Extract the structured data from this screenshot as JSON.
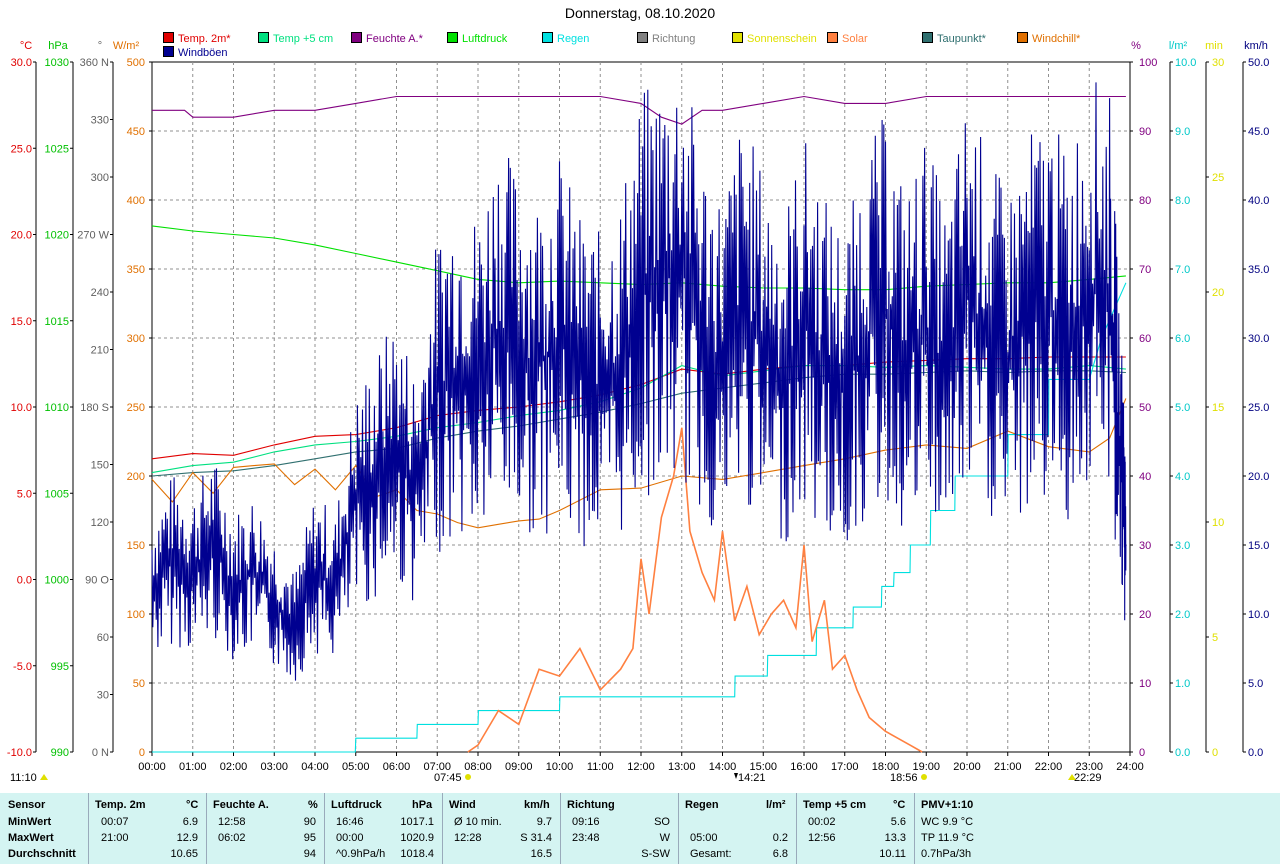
{
  "title": "Donnerstag, 08.10.2020",
  "legend": [
    {
      "label": "Temp. 2m*",
      "color": "#e00000"
    },
    {
      "label": "Temp +5 cm",
      "color": "#00e080"
    },
    {
      "label": "Feuchte A.*",
      "color": "#800080"
    },
    {
      "label": "Luftdruck",
      "color": "#00e000"
    },
    {
      "label": "Regen",
      "color": "#00e0e0"
    },
    {
      "label": "Richtung",
      "color": "#808080"
    },
    {
      "label": "Sonnenschein",
      "color": "#e0e000"
    },
    {
      "label": "Solar",
      "color": "#ff8040"
    },
    {
      "label": "Taupunkt*",
      "color": "#307070"
    },
    {
      "label": "Windchill*",
      "color": "#e07000"
    },
    {
      "label": "Windböen",
      "color": "#000090"
    }
  ],
  "left_axes": {
    "temp": {
      "unit": "°C",
      "color": "#e00000",
      "ticks": [
        "30.0",
        "25.0",
        "20.0",
        "15.0",
        "10.0",
        "5.0",
        "0.0",
        "-5.0",
        "-10.0"
      ]
    },
    "press": {
      "unit": "hPa",
      "color": "#00c000",
      "ticks": [
        "1030",
        "1025",
        "1020",
        "1015",
        "1010",
        "1005",
        "1000",
        "995",
        "990"
      ]
    },
    "dir": {
      "unit": "°",
      "color": "#606060",
      "ticks": [
        "360 N",
        "330",
        "300",
        "270 W",
        "240",
        "210",
        "180 S",
        "150",
        "120",
        "90 O",
        "60",
        "30",
        "0 N"
      ]
    },
    "solar": {
      "unit": "W/m²",
      "color": "#e07000",
      "ticks": [
        "500",
        "450",
        "400",
        "350",
        "300",
        "250",
        "200",
        "150",
        "100",
        "50",
        "0"
      ]
    }
  },
  "right_axes": {
    "hum": {
      "unit": "%",
      "color": "#800080",
      "ticks": [
        "100",
        "90",
        "80",
        "70",
        "60",
        "50",
        "40",
        "30",
        "20",
        "10",
        "0"
      ]
    },
    "rain": {
      "unit": "l/m²",
      "color": "#00c8c8",
      "ticks": [
        "10.0",
        "9.0",
        "8.0",
        "7.0",
        "6.0",
        "5.0",
        "4.0",
        "3.0",
        "2.0",
        "1.0",
        "0.0"
      ]
    },
    "sun": {
      "unit": "min",
      "color": "#e0e000",
      "ticks": [
        "30",
        "25",
        "20",
        "15",
        "10",
        "5",
        "0"
      ]
    },
    "wind": {
      "unit": "km/h",
      "color": "#000080",
      "ticks": [
        "50.0",
        "45.0",
        "40.0",
        "35.0",
        "30.0",
        "25.0",
        "20.0",
        "15.0",
        "10.0",
        "5.0",
        "0.0"
      ]
    }
  },
  "time_ticks": [
    "00:00",
    "01:00",
    "02:00",
    "03:00",
    "04:00",
    "05:00",
    "06:00",
    "07:00",
    "08:00",
    "09:00",
    "10:00",
    "11:00",
    "12:00",
    "13:00",
    "14:00",
    "15:00",
    "16:00",
    "17:00",
    "18:00",
    "19:00",
    "20:00",
    "21:00",
    "22:00",
    "23:00",
    "24:00"
  ],
  "time_markers": {
    "moon_label": "11:10",
    "sunrise": "07:45",
    "rain_marker": "14:21",
    "sunset": "18:56",
    "moonset": "22:29"
  },
  "chart_data": {
    "type": "line",
    "title": "Donnerstag, 08.10.2020",
    "x_unit": "hours",
    "xlim": [
      0,
      24
    ],
    "series": [
      {
        "name": "Temp. 2m*",
        "axis": "°C",
        "x": [
          0,
          1,
          2,
          3,
          4,
          5,
          6,
          7,
          8,
          9,
          10,
          11,
          12,
          13,
          14,
          15,
          16,
          17,
          18,
          19,
          20,
          21,
          22,
          23,
          23.9
        ],
        "y": [
          7.0,
          7.3,
          7.2,
          7.8,
          8.3,
          8.4,
          8.8,
          9.5,
          9.8,
          10.0,
          10.3,
          10.7,
          11.3,
          12.2,
          11.9,
          12.2,
          12.4,
          12.4,
          12.6,
          12.7,
          12.8,
          12.8,
          12.9,
          12.9,
          12.9
        ]
      },
      {
        "name": "Temp +5 cm",
        "axis": "°C",
        "x": [
          0,
          1,
          2,
          3,
          4,
          5,
          6,
          7,
          8,
          9,
          10,
          11,
          12,
          13,
          14,
          15,
          16,
          17,
          18,
          19,
          20,
          21,
          22,
          23,
          23.9
        ],
        "y": [
          6.2,
          6.6,
          6.8,
          7.4,
          7.8,
          8.0,
          8.3,
          8.8,
          9.1,
          9.5,
          9.8,
          10.3,
          11.1,
          12.4,
          11.8,
          12.1,
          12.4,
          12.4,
          12.3,
          12.4,
          12.3,
          12.2,
          12.2,
          12.4,
          12.2
        ]
      },
      {
        "name": "Taupunkt*",
        "axis": "°C",
        "x": [
          0,
          1,
          2,
          3,
          4,
          5,
          6,
          7,
          8,
          9,
          10,
          11,
          12,
          13,
          14,
          15,
          16,
          17,
          18,
          19,
          20,
          21,
          22,
          23,
          23.9
        ],
        "y": [
          6.0,
          6.2,
          6.3,
          6.6,
          7.0,
          7.4,
          7.6,
          8.2,
          8.6,
          8.9,
          9.3,
          9.7,
          10.2,
          10.8,
          11.1,
          11.4,
          11.7,
          11.9,
          11.9,
          12.0,
          12.1,
          12.0,
          12.1,
          12.1,
          12.0
        ]
      },
      {
        "name": "Windchill*",
        "axis": "°C",
        "x": [
          0,
          0.5,
          1,
          1.5,
          2,
          2.5,
          3,
          3.5,
          4,
          4.5,
          5,
          5.5,
          6,
          6.5,
          7,
          7.5,
          8,
          8.5,
          9,
          9.5,
          10,
          11,
          12,
          13,
          14,
          15,
          16,
          17,
          18,
          19,
          20,
          21,
          22,
          23,
          23.5,
          23.9
        ],
        "y": [
          5.8,
          4.5,
          6.2,
          5.0,
          6.5,
          6.6,
          6.7,
          5.5,
          6.4,
          5.2,
          6.6,
          4.8,
          5.2,
          4.0,
          3.8,
          3.3,
          3.0,
          3.2,
          3.4,
          3.5,
          4.0,
          5.2,
          5.3,
          6.0,
          5.8,
          6.2,
          6.6,
          7.0,
          7.5,
          7.8,
          7.6,
          8.6,
          7.7,
          7.4,
          8.2,
          10.5
        ]
      },
      {
        "name": "Feuchte A.*",
        "axis": "%",
        "x": [
          0,
          0.8,
          1,
          2,
          3,
          4,
          5,
          6,
          7,
          8,
          9,
          10,
          11,
          12,
          12.5,
          13,
          13.5,
          14,
          15,
          16,
          17,
          18,
          19,
          20,
          21,
          22,
          23,
          23.9
        ],
        "y": [
          93,
          93,
          92,
          92,
          93,
          93,
          94,
          95,
          95,
          95,
          95,
          95,
          95,
          94,
          92,
          91,
          93,
          93,
          94,
          95,
          94,
          94,
          95,
          95,
          95,
          95,
          95,
          95
        ]
      },
      {
        "name": "Luftdruck",
        "axis": "hPa",
        "x": [
          0,
          1,
          2,
          3,
          4,
          5,
          6,
          7,
          8,
          9,
          10,
          11,
          12,
          13,
          14,
          15,
          16,
          17,
          18,
          19,
          20,
          21,
          22,
          23,
          23.9
        ],
        "y": [
          1020.5,
          1020.2,
          1020.0,
          1019.8,
          1019.4,
          1018.9,
          1018.4,
          1017.9,
          1017.4,
          1017.2,
          1017.3,
          1017.2,
          1017.1,
          1017.2,
          1017.0,
          1016.9,
          1016.9,
          1016.8,
          1016.8,
          1017.0,
          1017.1,
          1017.2,
          1017.2,
          1017.4,
          1017.6
        ]
      },
      {
        "name": "Regen",
        "axis": "l/m²",
        "x": [
          0,
          4.99,
          5,
          6.5,
          6.51,
          8,
          8.01,
          10,
          10.01,
          14.3,
          14.31,
          15.1,
          15.11,
          16.3,
          16.31,
          17.2,
          17.21,
          17.9,
          17.91,
          18.2,
          18.21,
          18.6,
          18.61,
          19.1,
          19.11,
          19.7,
          19.71,
          21,
          21.01,
          22,
          22.01,
          23,
          23.3,
          23.9
        ],
        "y": [
          0,
          0,
          0.2,
          0.2,
          0.4,
          0.4,
          0.6,
          0.6,
          0.8,
          0.8,
          1.1,
          1.1,
          1.4,
          1.4,
          1.8,
          1.8,
          2.1,
          2.1,
          2.4,
          2.4,
          2.6,
          2.6,
          3.0,
          3.0,
          3.5,
          3.5,
          4.0,
          4.0,
          4.6,
          4.6,
          5.4,
          5.4,
          6.0,
          6.8
        ]
      },
      {
        "name": "Solar",
        "axis": "W/m²",
        "x": [
          7.75,
          8,
          8.5,
          9,
          9.5,
          10,
          10.5,
          11,
          11.5,
          11.8,
          12,
          12.2,
          12.5,
          12.8,
          13,
          13.2,
          13.5,
          13.8,
          14,
          14.3,
          14.6,
          14.9,
          15.2,
          15.5,
          15.8,
          16,
          16.2,
          16.5,
          16.7,
          17,
          17.3,
          17.6,
          18,
          18.3,
          18.6,
          18.9
        ],
        "y": [
          0,
          5,
          30,
          20,
          60,
          55,
          75,
          45,
          60,
          75,
          140,
          100,
          170,
          200,
          235,
          160,
          130,
          110,
          160,
          95,
          120,
          85,
          100,
          110,
          90,
          150,
          80,
          110,
          60,
          70,
          45,
          25,
          15,
          10,
          5,
          0
        ]
      },
      {
        "name": "Windböen",
        "axis": "km/h",
        "x": [
          0,
          0.5,
          1,
          1.5,
          2,
          2.5,
          3,
          3.5,
          4,
          4.5,
          5,
          5.5,
          6,
          6.5,
          7,
          7.5,
          8,
          8.5,
          9,
          9.5,
          10,
          10.5,
          11,
          11.5,
          12,
          12.5,
          13,
          13.5,
          14,
          14.5,
          15,
          15.5,
          16,
          16.5,
          17,
          17.5,
          18,
          18.5,
          19,
          19.5,
          20,
          20.5,
          21,
          21.5,
          22,
          22.5,
          23,
          23.5,
          23.8,
          23.9
        ],
        "y": [
          12,
          14,
          13,
          15,
          12,
          13,
          11,
          9,
          13,
          12,
          18,
          20,
          22,
          19,
          26,
          28,
          27,
          31,
          29,
          28,
          30,
          27,
          26,
          28,
          33,
          34,
          35,
          30,
          28,
          32,
          29,
          27,
          31,
          28,
          26,
          30,
          32,
          28,
          31,
          27,
          33,
          30,
          28,
          31,
          32,
          30,
          34,
          33,
          20,
          15
        ]
      }
    ],
    "direction_label": "Richtung",
    "sunshine_label": "Sonnenschein"
  },
  "stats": {
    "headers": [
      {
        "title": "Sensor",
        "unit": ""
      },
      {
        "title": "Temp. 2m",
        "unit": "°C"
      },
      {
        "title": "Feuchte A.",
        "unit": "%"
      },
      {
        "title": "Luftdruck",
        "unit": "hPa"
      },
      {
        "title": "Wind",
        "unit": "km/h"
      },
      {
        "title": "Richtung",
        "unit": ""
      },
      {
        "title": "Regen",
        "unit": "l/m²"
      },
      {
        "title": "Temp +5 cm",
        "unit": "°C"
      },
      {
        "title": "PMV+1:10",
        "unit": ""
      }
    ],
    "rows": [
      {
        "label": "MinWert",
        "temp_t": "00:07",
        "temp_v": "6.9",
        "hum_t": "12:58",
        "hum_v": "90",
        "press_t": "16:46",
        "press_v": "1017.1",
        "wind_t": "Ø 10 min.",
        "wind_v": "9.7",
        "dir_t": "09:16",
        "dir_v": "SO",
        "rain_t": "",
        "rain_v": "",
        "t5_t": "00:02",
        "t5_v": "5.6",
        "pmv": "WC 9.9 °C"
      },
      {
        "label": "MaxWert",
        "temp_t": "21:00",
        "temp_v": "12.9",
        "hum_t": "06:02",
        "hum_v": "95",
        "press_t": "00:00",
        "press_v": "1020.9",
        "wind_t": "12:28",
        "wind_v": "S 31.4",
        "dir_t": "23:48",
        "dir_v": "W",
        "rain_t": "05:00",
        "rain_v": "0.2",
        "t5_t": "12:56",
        "t5_v": "13.3",
        "pmv": "TP 11.9 °C"
      },
      {
        "label": "Durchschnitt",
        "temp_t": "",
        "temp_v": "10.65",
        "hum_t": "",
        "hum_v": "94",
        "press_t": "^0.9hPa/h",
        "press_v": "1018.4",
        "wind_t": "",
        "wind_v": "16.5",
        "dir_t": "",
        "dir_v": "S-SW",
        "rain_t": "Gesamt:",
        "rain_v": "6.8",
        "t5_t": "",
        "t5_v": "10.11",
        "pmv": "0.7hPa/3h"
      }
    ]
  }
}
